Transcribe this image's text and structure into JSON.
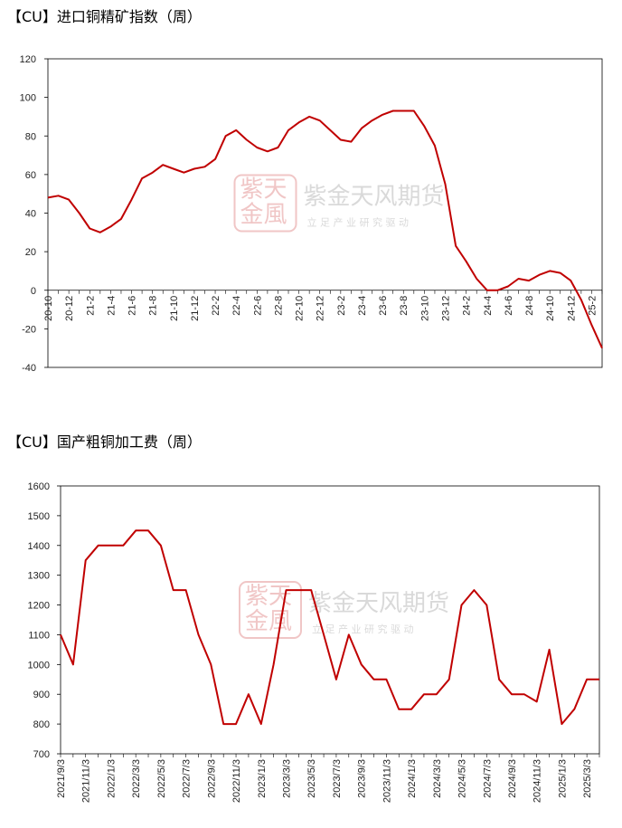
{
  "chart_data": [
    {
      "type": "line",
      "title": "【CU】进口铜精矿指数（周）",
      "color": "#c00000",
      "watermark": {
        "logo": [
          "紫天",
          "金風"
        ],
        "name": "紫金天风期货",
        "slogan": "立 足 产 业   研 究 驱 动"
      },
      "categories": [
        "20-10",
        null,
        "20-12",
        null,
        "21-2",
        null,
        "21-4",
        null,
        "21-6",
        null,
        "21-8",
        null,
        "21-10",
        null,
        "21-12",
        null,
        "22-2",
        null,
        "22-4",
        null,
        "22-6",
        null,
        "22-8",
        null,
        "22-10",
        null,
        "22-12",
        null,
        "23-2",
        null,
        "23-4",
        null,
        "23-6",
        null,
        "23-8",
        null,
        "23-10",
        null,
        "23-12",
        null,
        "24-2",
        null,
        "24-4",
        null,
        "24-6",
        null,
        "24-8",
        null,
        "24-10",
        null,
        "24-12",
        null,
        "25-2",
        null
      ],
      "values": [
        48,
        49,
        47,
        40,
        32,
        30,
        33,
        37,
        47,
        58,
        61,
        65,
        63,
        61,
        63,
        64,
        68,
        80,
        83,
        78,
        74,
        72,
        74,
        83,
        87,
        90,
        88,
        83,
        78,
        77,
        84,
        88,
        91,
        93,
        93,
        93,
        85,
        75,
        55,
        23,
        15,
        6,
        0,
        0,
        2,
        6,
        5,
        8,
        10,
        9,
        5,
        -5,
        -18,
        -30
      ],
      "ylim": [
        -40,
        120
      ],
      "yticks": [
        -40,
        -20,
        0,
        20,
        40,
        60,
        80,
        100,
        120
      ]
    },
    {
      "type": "line",
      "title": "【CU】国产粗铜加工费（周）",
      "color": "#c00000",
      "watermark": {
        "logo": [
          "紫天",
          "金風"
        ],
        "name": "紫金天风期货",
        "slogan": "立 足 产 业   研 究 驱 动"
      },
      "categories": [
        "2021/9/3",
        null,
        "2021/11/3",
        null,
        "2022/1/3",
        null,
        "2022/3/3",
        null,
        "2022/5/3",
        null,
        "2022/7/3",
        null,
        "2022/9/3",
        null,
        "2022/11/3",
        null,
        "2023/1/3",
        null,
        "2023/3/3",
        null,
        "2023/5/3",
        null,
        "2023/7/3",
        null,
        "2023/9/3",
        null,
        "2023/11/3",
        null,
        "2024/1/3",
        null,
        "2024/3/3",
        null,
        "2024/5/3",
        null,
        "2024/7/3",
        null,
        "2024/9/3",
        null,
        "2024/11/3",
        null,
        "2025/1/3",
        null,
        "2025/3/3",
        null
      ],
      "values": [
        1100,
        1000,
        1350,
        1400,
        1400,
        1400,
        1450,
        1450,
        1400,
        1250,
        1250,
        1100,
        1000,
        800,
        800,
        900,
        800,
        1000,
        1250,
        1250,
        1250,
        1100,
        950,
        1100,
        1000,
        950,
        950,
        850,
        850,
        900,
        900,
        950,
        1200,
        1250,
        1200,
        950,
        900,
        900,
        875,
        1050,
        800,
        850,
        950,
        950
      ],
      "ylim": [
        700,
        1600
      ],
      "yticks": [
        700,
        800,
        900,
        1000,
        1100,
        1200,
        1300,
        1400,
        1500,
        1600
      ]
    }
  ]
}
